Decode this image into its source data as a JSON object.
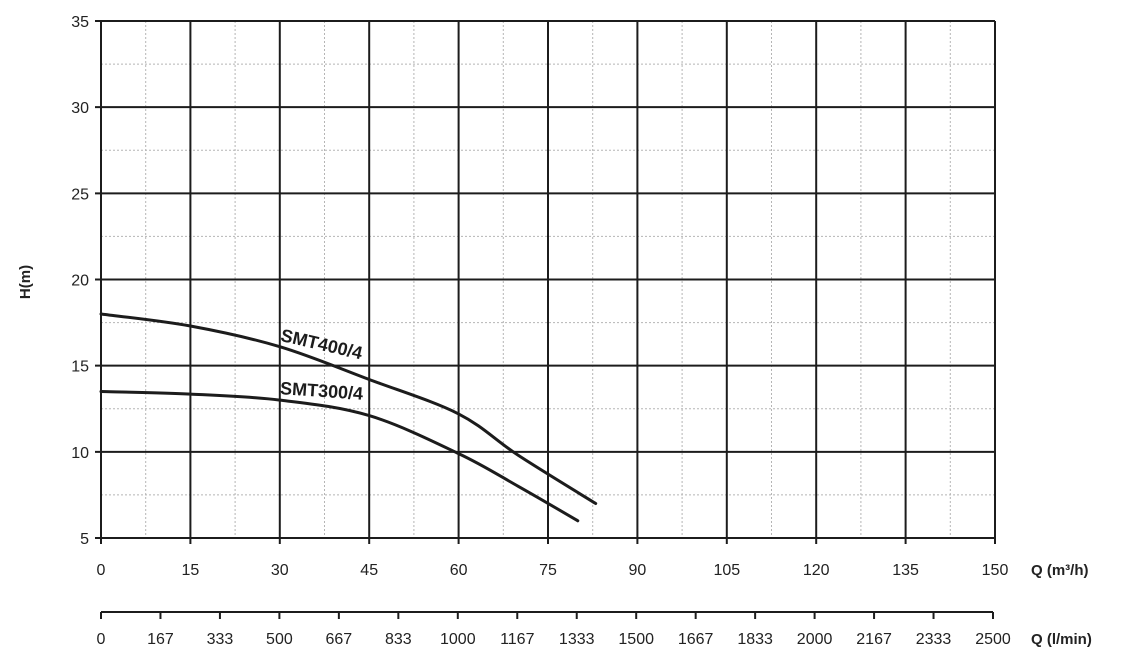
{
  "chart_data": {
    "type": "line",
    "ylabel": "H(m)",
    "xlabel": "Q (m³/h)",
    "xlabel_secondary": "Q (l/min)",
    "xlim": [
      0,
      150
    ],
    "ylim": [
      5,
      35
    ],
    "x_ticks": [
      "0",
      "15",
      "30",
      "45",
      "60",
      "75",
      "90",
      "105",
      "120",
      "135",
      "150"
    ],
    "x_ticks_secondary": [
      "0",
      "167",
      "333",
      "500",
      "667",
      "833",
      "1000",
      "1167",
      "1333",
      "1500",
      "1667",
      "1833",
      "2000",
      "2167",
      "2333",
      "2500"
    ],
    "y_ticks": [
      "5",
      "10",
      "15",
      "20",
      "25",
      "30",
      "35"
    ],
    "grid": true,
    "series": [
      {
        "name": "SMT400/4",
        "points": [
          [
            0,
            18
          ],
          [
            15,
            17.3
          ],
          [
            30,
            16.1
          ],
          [
            45,
            14.2
          ],
          [
            60,
            12.2
          ],
          [
            70,
            9.8
          ],
          [
            83,
            7.0
          ]
        ]
      },
      {
        "name": "SMT300/4",
        "points": [
          [
            0,
            13.5
          ],
          [
            15,
            13.35
          ],
          [
            30,
            13.0
          ],
          [
            45,
            12.1
          ],
          [
            60,
            9.9
          ],
          [
            70,
            8.0
          ],
          [
            80,
            6.0
          ]
        ]
      }
    ],
    "colors": {
      "curve": "#1c1c1c",
      "major_grid": "#1c1c1c",
      "minor_grid": "#b5b5b5"
    }
  }
}
